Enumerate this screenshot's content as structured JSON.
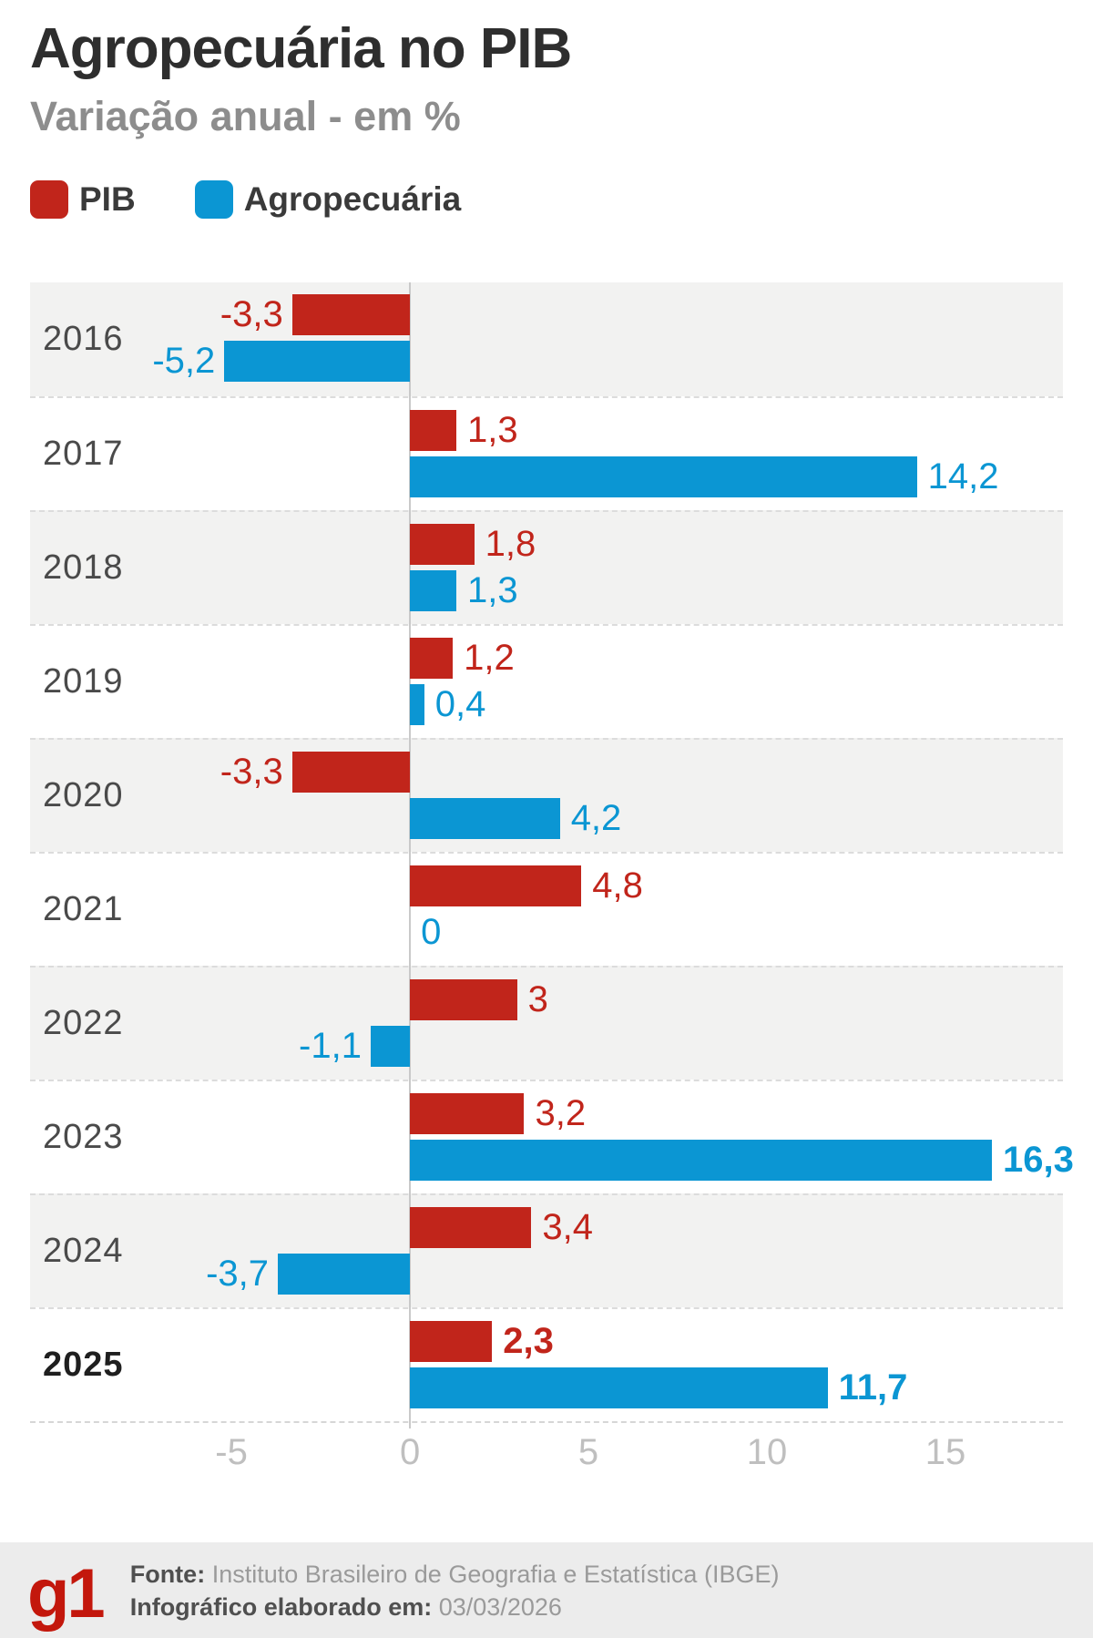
{
  "chart_data": {
    "type": "bar",
    "orientation": "horizontal",
    "title": "Agropecuária no PIB",
    "subtitle": "Variação anual - em %",
    "categories": [
      "2016",
      "2017",
      "2018",
      "2019",
      "2020",
      "2021",
      "2022",
      "2023",
      "2024",
      "2025"
    ],
    "bold_categories": [
      "2025"
    ],
    "shaded_rows": [
      "2016",
      "2018",
      "2020",
      "2022",
      "2024"
    ],
    "series": [
      {
        "name": "PIB",
        "color": "#c1251b",
        "values": [
          -3.3,
          1.3,
          1.8,
          1.2,
          -3.3,
          4.8,
          3,
          3.2,
          3.4,
          2.3
        ],
        "labels": [
          "-3,3",
          "1,3",
          "1,8",
          "1,2",
          "-3,3",
          "4,8",
          "3",
          "3,2",
          "3,4",
          "2,3"
        ],
        "bold_labels": [
          false,
          false,
          false,
          false,
          false,
          false,
          false,
          false,
          false,
          true
        ]
      },
      {
        "name": "Agropecuária",
        "color": "#0b96d3",
        "values": [
          -5.2,
          14.2,
          1.3,
          0.4,
          4.2,
          0,
          -1.1,
          16.3,
          -3.7,
          11.7
        ],
        "labels": [
          "-5,2",
          "14,2",
          "1,3",
          "0,4",
          "4,2",
          "0",
          "-1,1",
          "16,3",
          "-3,7",
          "11,7"
        ],
        "bold_labels": [
          false,
          false,
          false,
          false,
          false,
          false,
          false,
          true,
          false,
          true
        ]
      }
    ],
    "x_ticks": [
      -5,
      0,
      5,
      10,
      15
    ],
    "x_tick_labels": [
      "-5",
      "0",
      "5",
      "10",
      "15"
    ],
    "xlim": [
      -10.64,
      18.29
    ],
    "grid": "dashed-row-separators",
    "legend_position": "top-left"
  },
  "footer": {
    "logo": "g1",
    "source_label": "Fonte:",
    "source_text": " Instituto Brasileiro de Geografia e Estatística (IBGE)",
    "date_label": "Infográfico elaborado em:",
    "date_text": " 03/03/2026"
  }
}
